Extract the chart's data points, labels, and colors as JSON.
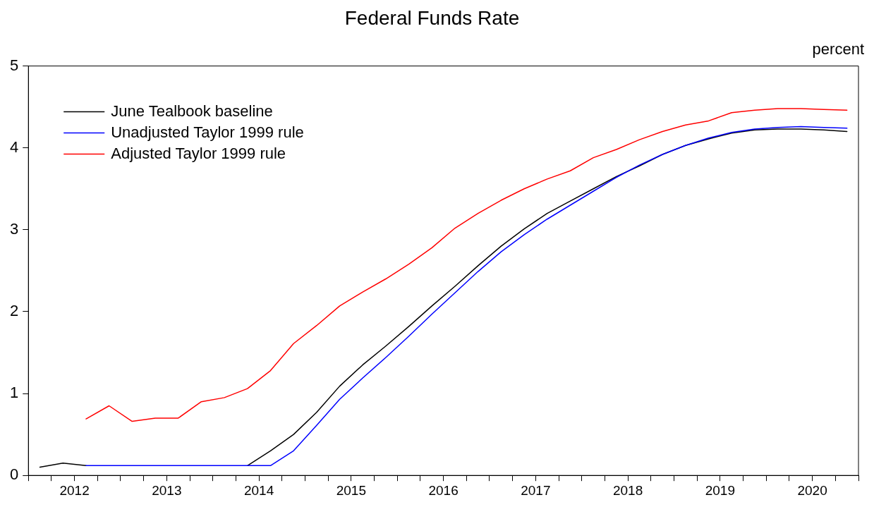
{
  "chart_data": {
    "type": "line",
    "title": "Federal Funds Rate",
    "ylabel": "percent",
    "x": [
      2012.125,
      2012.375,
      2012.625,
      2012.875,
      2013.125,
      2013.375,
      2013.625,
      2013.875,
      2014.125,
      2014.375,
      2014.625,
      2014.875,
      2015.125,
      2015.375,
      2015.625,
      2015.875,
      2016.125,
      2016.375,
      2016.625,
      2016.875,
      2017.125,
      2017.375,
      2017.625,
      2017.875,
      2018.125,
      2018.375,
      2018.625,
      2018.875,
      2019.125,
      2019.375,
      2019.625,
      2019.875,
      2020.125,
      2020.375,
      2020.625,
      2020.875
    ],
    "series": [
      {
        "name": "June Tealbook baseline",
        "color": "#000000",
        "values": [
          0.1,
          0.15,
          0.12,
          null,
          null,
          null,
          null,
          null,
          null,
          0.12,
          0.3,
          0.5,
          0.77,
          1.09,
          1.35,
          1.58,
          1.82,
          2.07,
          2.31,
          2.56,
          2.8,
          3.01,
          3.2,
          3.35,
          3.5,
          3.65,
          3.78,
          3.92,
          4.03,
          4.11,
          4.18,
          4.22,
          4.23,
          4.23,
          4.22,
          4.2
        ]
      },
      {
        "name": "Unadjusted Taylor 1999 rule",
        "color": "#0000ff",
        "values": [
          null,
          null,
          0.12,
          0.12,
          0.12,
          0.12,
          0.12,
          0.12,
          0.12,
          0.12,
          0.12,
          0.3,
          0.61,
          0.93,
          1.19,
          1.44,
          1.7,
          1.97,
          2.23,
          2.49,
          2.73,
          2.94,
          3.13,
          3.3,
          3.47,
          3.64,
          3.79,
          3.92,
          4.03,
          4.12,
          4.19,
          4.23,
          4.25,
          4.26,
          4.25,
          4.24
        ]
      },
      {
        "name": "Adjusted Taylor 1999 rule",
        "color": "#ff0000",
        "values": [
          null,
          null,
          0.69,
          0.85,
          0.66,
          0.7,
          0.7,
          0.9,
          0.95,
          1.06,
          1.28,
          1.61,
          1.83,
          2.07,
          2.24,
          2.4,
          2.58,
          2.78,
          3.02,
          3.2,
          3.36,
          3.5,
          3.62,
          3.72,
          3.88,
          3.98,
          4.1,
          4.2,
          4.28,
          4.33,
          4.43,
          4.46,
          4.48,
          4.48,
          4.47,
          4.46
        ]
      }
    ],
    "xlim": [
      2012,
      2021
    ],
    "xticks": [
      {
        "value": 2012,
        "label": null
      },
      {
        "value": 2012.25,
        "label": null
      },
      {
        "value": 2012.5,
        "label": "2012"
      },
      {
        "value": 2012.75,
        "label": null
      },
      {
        "value": 2013,
        "label": null
      },
      {
        "value": 2013.25,
        "label": null
      },
      {
        "value": 2013.5,
        "label": "2013"
      },
      {
        "value": 2013.75,
        "label": null
      },
      {
        "value": 2014,
        "label": null
      },
      {
        "value": 2014.25,
        "label": null
      },
      {
        "value": 2014.5,
        "label": "2014"
      },
      {
        "value": 2014.75,
        "label": null
      },
      {
        "value": 2015,
        "label": null
      },
      {
        "value": 2015.25,
        "label": null
      },
      {
        "value": 2015.5,
        "label": "2015"
      },
      {
        "value": 2015.75,
        "label": null
      },
      {
        "value": 2016,
        "label": null
      },
      {
        "value": 2016.25,
        "label": null
      },
      {
        "value": 2016.5,
        "label": "2016"
      },
      {
        "value": 2016.75,
        "label": null
      },
      {
        "value": 2017,
        "label": null
      },
      {
        "value": 2017.25,
        "label": null
      },
      {
        "value": 2017.5,
        "label": "2017"
      },
      {
        "value": 2017.75,
        "label": null
      },
      {
        "value": 2018,
        "label": null
      },
      {
        "value": 2018.25,
        "label": null
      },
      {
        "value": 2018.5,
        "label": "2018"
      },
      {
        "value": 2018.75,
        "label": null
      },
      {
        "value": 2019,
        "label": null
      },
      {
        "value": 2019.25,
        "label": null
      },
      {
        "value": 2019.5,
        "label": "2019"
      },
      {
        "value": 2019.75,
        "label": null
      },
      {
        "value": 2020,
        "label": null
      },
      {
        "value": 2020.25,
        "label": null
      },
      {
        "value": 2020.5,
        "label": "2020"
      },
      {
        "value": 2020.75,
        "label": null
      },
      {
        "value": 2021,
        "label": null
      }
    ],
    "ylim": [
      0,
      5
    ],
    "yticks": [
      0,
      1,
      2,
      3,
      4,
      5
    ],
    "grid": false,
    "legend": "top left",
    "marker": "none",
    "line_style": "solid"
  }
}
